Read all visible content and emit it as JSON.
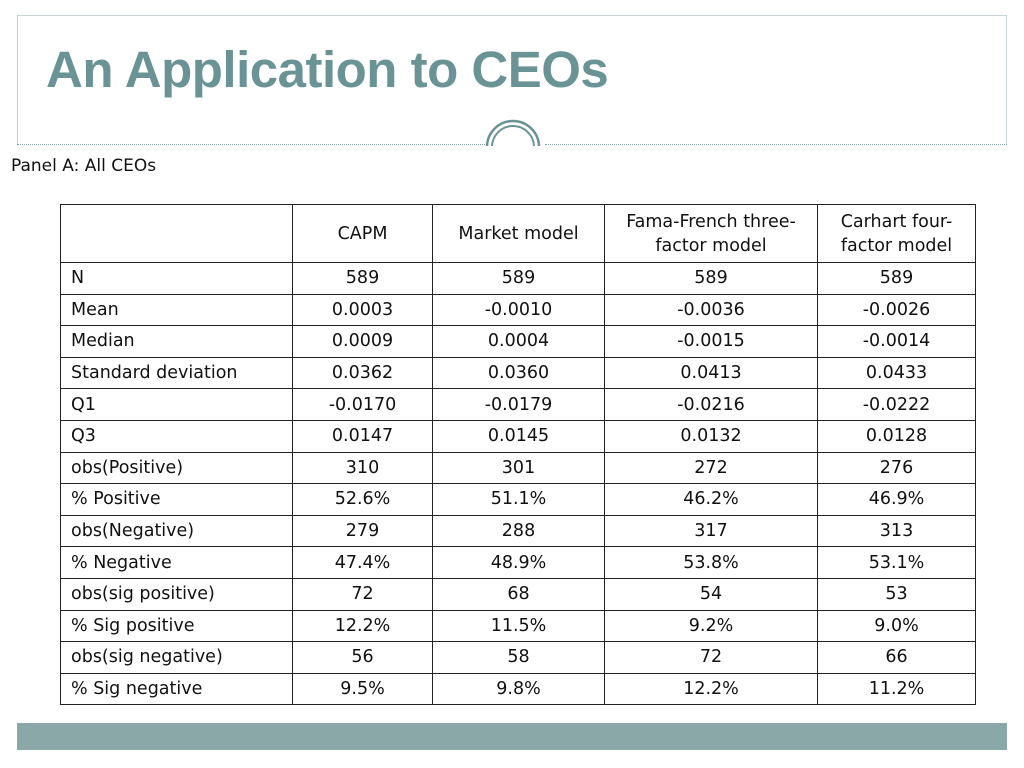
{
  "slide": {
    "title": "An Application to CEOs",
    "panel_label": "Panel A: All CEOs",
    "colors": {
      "title": "#6a9396",
      "accent_bar": "#8ba8a8",
      "frame": "#c4d3d4"
    },
    "ornament_icon": "double-ring-icon"
  },
  "table": {
    "columns": [
      "",
      "CAPM",
      "Market model",
      "Fama-French three-factor model",
      "Carhart four-factor model"
    ],
    "rows": [
      {
        "label": "N",
        "values": [
          "589",
          "589",
          "589",
          "589"
        ]
      },
      {
        "label": "Mean",
        "values": [
          "0.0003",
          "-0.0010",
          "-0.0036",
          "-0.0026"
        ]
      },
      {
        "label": "Median",
        "values": [
          "0.0009",
          "0.0004",
          "-0.0015",
          "-0.0014"
        ]
      },
      {
        "label": "Standard deviation",
        "values": [
          "0.0362",
          "0.0360",
          "0.0413",
          "0.0433"
        ]
      },
      {
        "label": "Q1",
        "values": [
          "-0.0170",
          "-0.0179",
          "-0.0216",
          "-0.0222"
        ]
      },
      {
        "label": "Q3",
        "values": [
          "0.0147",
          "0.0145",
          "0.0132",
          "0.0128"
        ]
      },
      {
        "label": "obs(Positive)",
        "values": [
          "310",
          "301",
          "272",
          "276"
        ]
      },
      {
        "label": "% Positive",
        "values": [
          "52.6%",
          "51.1%",
          "46.2%",
          "46.9%"
        ]
      },
      {
        "label": "obs(Negative)",
        "values": [
          "279",
          "288",
          "317",
          "313"
        ]
      },
      {
        "label": "% Negative",
        "values": [
          "47.4%",
          "48.9%",
          "53.8%",
          "53.1%"
        ]
      },
      {
        "label": "obs(sig positive)",
        "values": [
          "72",
          "68",
          "54",
          "53"
        ]
      },
      {
        "label": "% Sig positive",
        "values": [
          "12.2%",
          "11.5%",
          "9.2%",
          "9.0%"
        ]
      },
      {
        "label": "obs(sig negative)",
        "values": [
          "56",
          "58",
          "72",
          "66"
        ]
      },
      {
        "label": "% Sig negative",
        "values": [
          "9.5%",
          "9.8%",
          "12.2%",
          "11.2%"
        ]
      }
    ]
  }
}
